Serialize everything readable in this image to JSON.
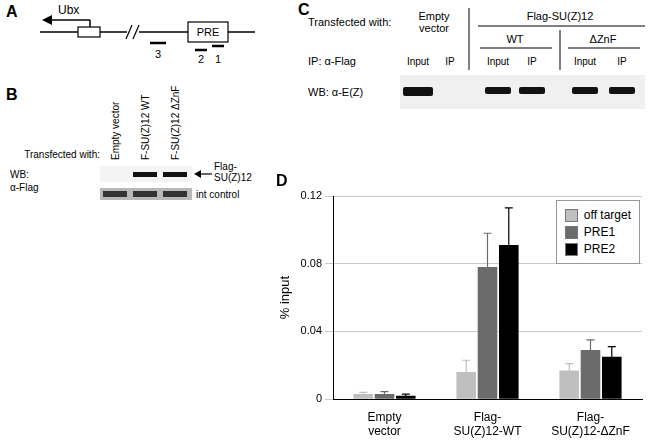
{
  "panel_a": {
    "label": "A",
    "gene": "Ubx",
    "element": "PRE",
    "probes": [
      "3",
      "2",
      "1"
    ]
  },
  "panel_b": {
    "label": "B",
    "header": "Transfected with:",
    "lanes": [
      "Empty vector",
      "F-SU(Z)12 WT",
      "F-SU(Z)12 ΔZnF"
    ],
    "blot_label": [
      "WB:",
      "α-Flag"
    ],
    "rows": [
      {
        "label": [
          "Flag-",
          "SU(Z)12"
        ],
        "bands": [
          false,
          true,
          true
        ]
      },
      {
        "label": [
          "int control"
        ],
        "bands": [
          true,
          true,
          true
        ]
      }
    ]
  },
  "panel_c": {
    "label": "C",
    "header": "Transfected with:",
    "empty": [
      "Empty",
      "vector"
    ],
    "construct": "Flag-SU(Z)12",
    "variants": [
      "WT",
      "ΔZnF"
    ],
    "ip_label": "IP: α-Flag",
    "lanes": [
      "Input",
      "IP",
      "Input",
      "IP",
      "Input",
      "IP"
    ],
    "bands": [
      true,
      false,
      true,
      true,
      true,
      true
    ],
    "blot_label": "WB: α-E(Z)"
  },
  "panel_d": {
    "label": "D"
  },
  "chart_data": {
    "type": "bar",
    "categories": [
      [
        "Empty",
        "vector"
      ],
      [
        "Flag-",
        "SU(Z)12-WT"
      ],
      [
        "Flag-",
        "SU(Z)12-ΔZnF"
      ]
    ],
    "ylabel": "% input",
    "ylim": [
      0,
      0.12
    ],
    "yticks": [
      0,
      0.04,
      0.08,
      0.12
    ],
    "grid": true,
    "legend": "upper right",
    "series": [
      {
        "name": "off target",
        "color": "#bfbfbf",
        "values": [
          0.003,
          0.016,
          0.017
        ],
        "errors": [
          0.001,
          0.007,
          0.004
        ]
      },
      {
        "name": "PRE1",
        "color": "#6b6b6b",
        "values": [
          0.003,
          0.078,
          0.029
        ],
        "errors": [
          0.0015,
          0.02,
          0.006
        ]
      },
      {
        "name": "PRE2",
        "color": "#000000",
        "values": [
          0.002,
          0.091,
          0.025
        ],
        "errors": [
          0.001,
          0.022,
          0.006
        ]
      }
    ]
  }
}
